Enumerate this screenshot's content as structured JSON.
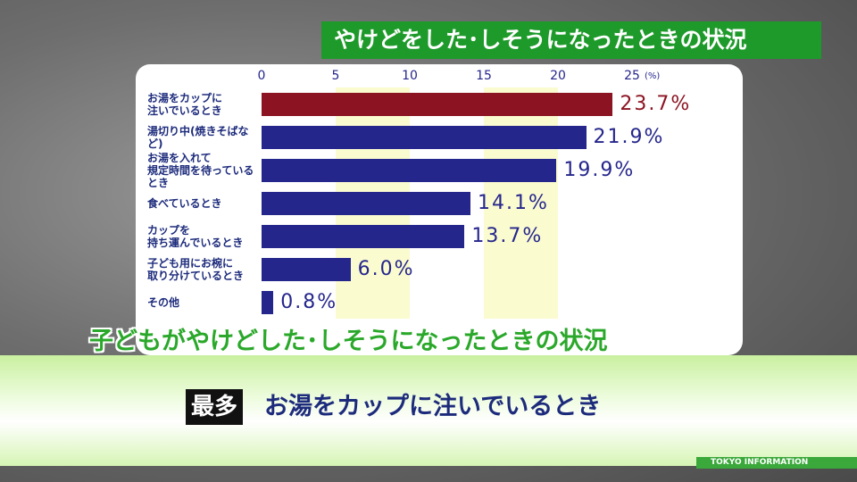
{
  "header": {
    "title": "やけどをした･しそうになったときの状況"
  },
  "chart_data": {
    "type": "bar",
    "orientation": "horizontal",
    "title": "子どもがやけどした･しそうになったときの状況",
    "xlabel": "(%)",
    "categories": [
      "お湯をカップに\n注いでいるとき",
      "湯切り中(焼きそばなど)",
      "お湯を入れて\n規定時間を待っているとき",
      "食べているとき",
      "カップを\n持ち運んでいるとき",
      "子ども用にお椀に\n取り分けているとき",
      "その他"
    ],
    "values": [
      23.7,
      21.9,
      19.9,
      14.1,
      13.7,
      6.0,
      0.8
    ],
    "value_labels": [
      "23.7%",
      "21.9%",
      "19.9%",
      "14.1%",
      "13.7%",
      "6.0%",
      "0.8%"
    ],
    "colors": [
      "#8c1422",
      "#25268c",
      "#25268c",
      "#25268c",
      "#25268c",
      "#25268c",
      "#25268c"
    ],
    "xlim": [
      0,
      25
    ],
    "xticks": [
      0,
      5,
      10,
      15,
      20,
      25
    ],
    "grid": true
  },
  "caption": {
    "tag": "最多",
    "text": "お湯をカップに注いでいるとき"
  },
  "footer": {
    "logo": "TOKYO INFORMATION"
  }
}
